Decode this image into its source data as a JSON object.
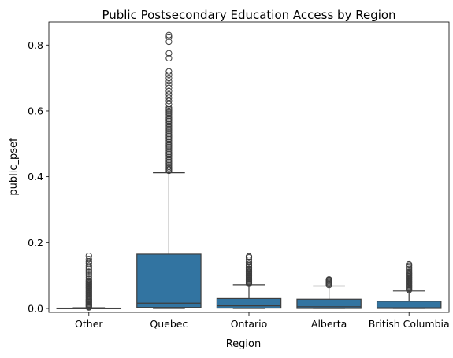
{
  "chart_data": {
    "type": "box",
    "title": "Public Postsecondary Education Access by Region",
    "xlabel": "Region",
    "ylabel": "public_psef",
    "ylim": [
      -0.012,
      0.87
    ],
    "yticks": [
      0.0,
      0.2,
      0.4,
      0.6,
      0.8
    ],
    "ytick_labels": [
      "0.0",
      "0.2",
      "0.4",
      "0.6",
      "0.8"
    ],
    "grid": false,
    "legend": "none",
    "box_color": "#3274a1",
    "categories": [
      "Other",
      "Quebec",
      "Ontario",
      "Alberta",
      "British Columbia"
    ],
    "boxes": [
      {
        "category": "Other",
        "q1": 0.0,
        "median": 0.0,
        "q3": 0.001,
        "whisker_low": 0.0,
        "whisker_high": 0.002,
        "outliers": [
          0.003,
          0.005,
          0.008,
          0.01,
          0.012,
          0.015,
          0.018,
          0.02,
          0.023,
          0.026,
          0.028,
          0.031,
          0.034,
          0.037,
          0.04,
          0.043,
          0.046,
          0.049,
          0.052,
          0.055,
          0.058,
          0.061,
          0.064,
          0.067,
          0.07,
          0.073,
          0.076,
          0.079,
          0.082,
          0.085,
          0.09,
          0.095,
          0.1,
          0.105,
          0.11,
          0.115,
          0.12,
          0.125,
          0.13,
          0.137,
          0.142,
          0.15,
          0.16
        ]
      },
      {
        "category": "Quebec",
        "q1": 0.003,
        "median": 0.016,
        "q3": 0.165,
        "whisker_low": 0.0,
        "whisker_high": 0.412,
        "outliers": [
          0.418,
          0.422,
          0.426,
          0.43,
          0.435,
          0.44,
          0.445,
          0.45,
          0.455,
          0.46,
          0.465,
          0.47,
          0.475,
          0.48,
          0.485,
          0.49,
          0.495,
          0.5,
          0.505,
          0.51,
          0.515,
          0.52,
          0.525,
          0.53,
          0.535,
          0.54,
          0.545,
          0.55,
          0.555,
          0.56,
          0.565,
          0.57,
          0.575,
          0.58,
          0.585,
          0.59,
          0.595,
          0.6,
          0.605,
          0.61,
          0.62,
          0.63,
          0.64,
          0.65,
          0.66,
          0.67,
          0.68,
          0.69,
          0.7,
          0.71,
          0.72,
          0.76,
          0.775,
          0.81,
          0.825,
          0.83
        ]
      },
      {
        "category": "Ontario",
        "q1": 0.001,
        "median": 0.008,
        "q3": 0.03,
        "whisker_low": 0.0,
        "whisker_high": 0.072,
        "outliers": [
          0.075,
          0.078,
          0.081,
          0.084,
          0.087,
          0.09,
          0.093,
          0.096,
          0.099,
          0.102,
          0.105,
          0.108,
          0.111,
          0.114,
          0.117,
          0.12,
          0.125,
          0.13,
          0.135,
          0.14,
          0.148,
          0.155,
          0.158
        ]
      },
      {
        "category": "Alberta",
        "q1": 0.0,
        "median": 0.005,
        "q3": 0.028,
        "whisker_low": 0.0,
        "whisker_high": 0.068,
        "outliers": [
          0.071,
          0.074,
          0.077,
          0.08,
          0.083,
          0.086,
          0.088
        ]
      },
      {
        "category": "British Columbia",
        "q1": 0.0,
        "median": 0.002,
        "q3": 0.022,
        "whisker_low": 0.0,
        "whisker_high": 0.053,
        "outliers": [
          0.056,
          0.059,
          0.062,
          0.065,
          0.068,
          0.071,
          0.074,
          0.077,
          0.08,
          0.083,
          0.086,
          0.089,
          0.092,
          0.095,
          0.098,
          0.101,
          0.104,
          0.107,
          0.11,
          0.115,
          0.12,
          0.125,
          0.13,
          0.134
        ]
      }
    ]
  }
}
